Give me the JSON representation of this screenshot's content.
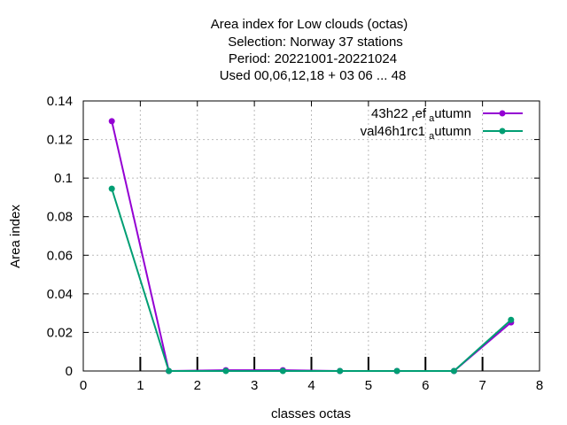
{
  "chart_data": {
    "type": "line",
    "title_lines": [
      "Area index  for Low clouds (octas)",
      "Selection: Norway     37 stations",
      "Period: 20221001-20221024",
      "Used  00,06,12,18  + 03 06 ... 48"
    ],
    "xlabel": "classes octas",
    "ylabel": "Area index",
    "xlim": [
      0,
      8
    ],
    "ylim": [
      0,
      0.14
    ],
    "xticks": [
      "0",
      "1",
      "2",
      "3",
      "4",
      "5",
      "6",
      "7",
      "8"
    ],
    "yticks": [
      "0",
      "0.02",
      "0.04",
      "0.06",
      "0.08",
      "0.1",
      "0.12",
      "0.14"
    ],
    "grid": true,
    "legend_position": "top-right",
    "x": [
      0.5,
      1.5,
      2.5,
      3.5,
      4.5,
      5.5,
      6.5,
      7.5
    ],
    "series": [
      {
        "name": "43h22 ref autumn",
        "legend_parts": [
          "43h22",
          "r",
          "ef",
          "a",
          "utumn"
        ],
        "color": "#9400d3",
        "values": [
          0.1295,
          0.0,
          0.0004,
          0.0004,
          0.0,
          0.0,
          0.0,
          0.0252
        ]
      },
      {
        "name": "val46h1rc1 autumn",
        "legend_parts": [
          "val46h1rc1",
          "a",
          "utumn"
        ],
        "color": "#009e73",
        "values": [
          0.0945,
          0.0,
          0.0,
          0.0,
          0.0,
          0.0,
          0.0,
          0.0265
        ]
      }
    ]
  }
}
